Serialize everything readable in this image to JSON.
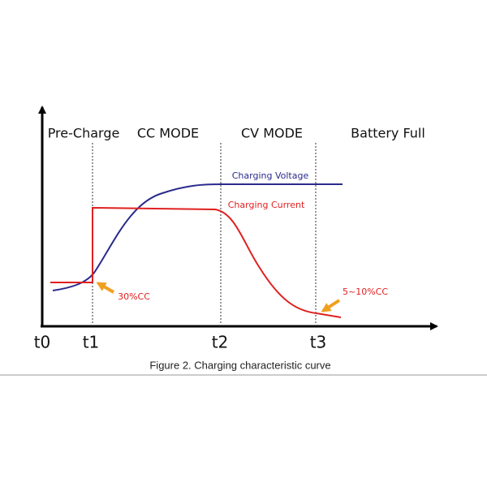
{
  "phases": [
    "Pre-Charge",
    "CC MODE",
    "CV MODE",
    "Battery Full"
  ],
  "curves": [
    {
      "label": "Charging Voltage"
    },
    {
      "label": "Charging Current"
    }
  ],
  "annotations": [
    "30%CC",
    "5~10%CC"
  ],
  "time_marks": [
    "t0",
    "t1",
    "t2",
    "t3"
  ],
  "caption": "Figure 2. Charging characteristic curve"
}
